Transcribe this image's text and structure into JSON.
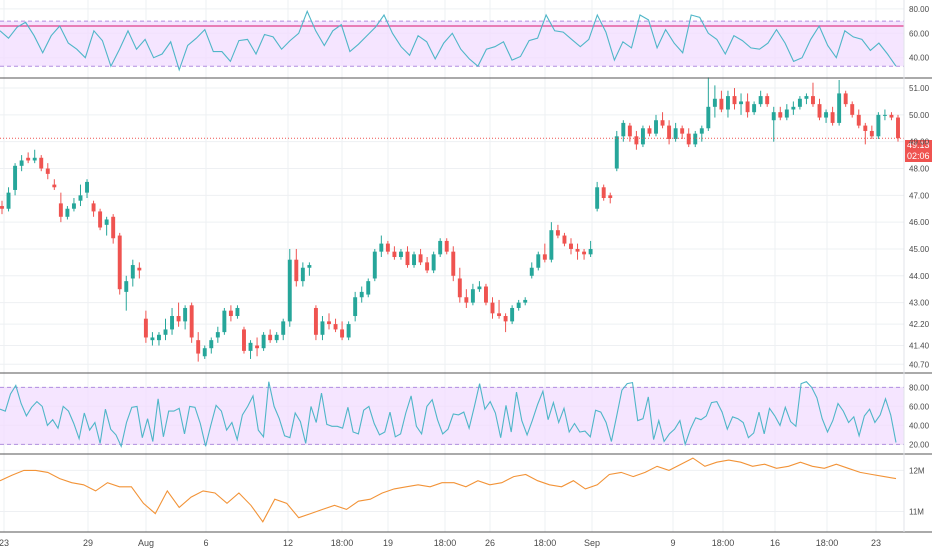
{
  "colors": {
    "up": "#26a69a",
    "down": "#ef5350",
    "rsi_line": "#4fb6c8",
    "band_fill": "#f1dcff",
    "band_border": "#b18ee0",
    "volume_line": "#f29337",
    "separator": "#555555",
    "grid": "#eef0f3",
    "price_line": "#ef5350"
  },
  "price_badge": {
    "price": "49.13",
    "countdown": "02:06"
  },
  "x_axis_labels": [
    "23",
    "29",
    "Aug",
    "6",
    "12",
    "18:00",
    "19",
    "18:00",
    "26",
    "18:00",
    "Sep",
    "9",
    "18:00",
    "16",
    "18:00",
    "23"
  ],
  "chart_data": [
    {
      "type": "line",
      "name": "top-oscillator",
      "y_tick_labels": [
        "80.00",
        "60.00",
        "40.00"
      ],
      "ylim": [
        25,
        84
      ],
      "band": [
        33,
        70
      ],
      "overbought_line": 66,
      "series": [
        {
          "values": [
            62,
            56,
            65,
            69,
            58,
            44,
            58,
            66,
            52,
            47,
            40,
            62,
            54,
            33,
            47,
            62,
            47,
            55,
            40,
            43,
            53,
            30,
            50,
            56,
            63,
            45,
            45,
            37,
            54,
            55,
            43,
            59,
            57,
            47,
            54,
            60,
            78,
            62,
            50,
            62,
            67,
            45,
            51,
            58,
            65,
            75,
            60,
            49,
            42,
            58,
            53,
            39,
            52,
            60,
            47,
            39,
            33,
            47,
            49,
            53,
            38,
            41,
            54,
            56,
            75,
            62,
            61,
            55,
            49,
            55,
            75,
            61,
            38,
            53,
            48,
            75,
            71,
            48,
            63,
            52,
            44,
            75,
            73,
            60,
            55,
            43,
            58,
            54,
            48,
            47,
            52,
            63,
            52,
            37,
            40,
            55,
            66,
            50,
            40,
            62,
            57,
            55,
            46,
            52,
            43,
            33
          ]
        }
      ]
    },
    {
      "type": "candlestick",
      "name": "price",
      "y_tick_labels": [
        "51.00",
        "50.00",
        "49.00",
        "48.00",
        "47.00",
        "46.00",
        "45.00",
        "44.00",
        "43.00",
        "42.20",
        "41.40",
        "40.70"
      ],
      "ylim": [
        40.45,
        51.3
      ],
      "last_price": 49.13,
      "candles": [
        [
          46.6,
          46.8,
          46.3,
          46.5
        ],
        [
          46.5,
          47.3,
          46.4,
          47.1
        ],
        [
          47.2,
          48.2,
          47.0,
          48.1
        ],
        [
          48.1,
          48.5,
          47.9,
          48.3
        ],
        [
          48.4,
          48.6,
          48.2,
          48.3
        ],
        [
          48.3,
          48.7,
          48.2,
          48.4
        ],
        [
          48.4,
          48.5,
          47.9,
          48.0
        ],
        [
          48.0,
          48.2,
          47.6,
          47.8
        ],
        [
          47.4,
          47.6,
          47.2,
          47.3
        ],
        [
          46.7,
          47.1,
          46.0,
          46.2
        ],
        [
          46.2,
          46.6,
          46.1,
          46.5
        ],
        [
          46.5,
          46.9,
          46.4,
          46.7
        ],
        [
          46.8,
          47.4,
          46.6,
          47.0
        ],
        [
          47.1,
          47.6,
          46.9,
          47.5
        ],
        [
          46.7,
          46.8,
          46.2,
          46.4
        ],
        [
          46.4,
          46.5,
          45.7,
          45.8
        ],
        [
          45.9,
          46.2,
          45.5,
          46.1
        ],
        [
          46.2,
          46.3,
          45.2,
          45.4
        ],
        [
          45.5,
          45.6,
          43.3,
          43.5
        ],
        [
          43.4,
          44.0,
          42.7,
          43.8
        ],
        [
          43.9,
          44.6,
          43.6,
          44.4
        ],
        [
          44.3,
          44.5,
          43.9,
          44.2
        ],
        [
          42.4,
          42.7,
          41.5,
          41.7
        ],
        [
          41.6,
          41.9,
          41.4,
          41.7
        ],
        [
          41.6,
          41.9,
          41.4,
          41.8
        ],
        [
          41.8,
          42.4,
          41.6,
          42.0
        ],
        [
          42.0,
          42.8,
          41.8,
          42.5
        ],
        [
          42.5,
          43.0,
          42.1,
          42.3
        ],
        [
          42.3,
          42.9,
          42.0,
          42.8
        ],
        [
          42.9,
          43.0,
          41.5,
          41.7
        ],
        [
          41.6,
          41.9,
          40.8,
          41.1
        ],
        [
          41.0,
          41.4,
          40.9,
          41.3
        ],
        [
          41.3,
          41.7,
          41.1,
          41.6
        ],
        [
          41.7,
          42.1,
          41.5,
          41.9
        ],
        [
          41.9,
          42.8,
          41.8,
          42.7
        ],
        [
          42.7,
          42.9,
          42.3,
          42.5
        ],
        [
          42.5,
          42.9,
          42.4,
          42.8
        ],
        [
          42.0,
          42.1,
          41.1,
          41.2
        ],
        [
          41.2,
          41.6,
          40.9,
          41.5
        ],
        [
          41.4,
          41.7,
          41.0,
          41.3
        ],
        [
          41.3,
          41.9,
          41.2,
          41.8
        ],
        [
          41.8,
          42.0,
          41.5,
          41.6
        ],
        [
          41.6,
          41.9,
          41.5,
          41.8
        ],
        [
          41.8,
          42.4,
          41.6,
          42.3
        ],
        [
          42.3,
          45.0,
          42.1,
          44.6
        ],
        [
          44.6,
          45.0,
          43.6,
          43.8
        ],
        [
          43.8,
          44.5,
          43.6,
          44.3
        ],
        [
          44.3,
          44.5,
          44.0,
          44.4
        ],
        [
          42.8,
          42.9,
          41.6,
          41.8
        ],
        [
          41.8,
          42.5,
          41.6,
          42.3
        ],
        [
          42.3,
          42.6,
          42.0,
          42.2
        ],
        [
          42.2,
          42.4,
          41.9,
          42.0
        ],
        [
          42.0,
          42.3,
          41.6,
          41.7
        ],
        [
          41.7,
          42.3,
          41.6,
          42.2
        ],
        [
          42.5,
          43.4,
          42.3,
          43.2
        ],
        [
          43.2,
          43.6,
          43.0,
          43.4
        ],
        [
          43.3,
          43.9,
          43.2,
          43.8
        ],
        [
          43.9,
          45.0,
          43.8,
          44.9
        ],
        [
          44.9,
          45.5,
          44.7,
          45.2
        ],
        [
          45.2,
          45.3,
          44.8,
          44.9
        ],
        [
          44.9,
          45.1,
          44.6,
          44.7
        ],
        [
          44.7,
          45.0,
          44.6,
          44.9
        ],
        [
          44.9,
          45.1,
          44.3,
          44.4
        ],
        [
          44.4,
          44.9,
          44.3,
          44.8
        ],
        [
          44.8,
          45.0,
          44.4,
          44.5
        ],
        [
          44.5,
          44.7,
          44.1,
          44.2
        ],
        [
          44.2,
          44.9,
          44.1,
          44.8
        ],
        [
          44.8,
          45.4,
          44.7,
          45.3
        ],
        [
          45.3,
          45.4,
          44.8,
          44.9
        ],
        [
          44.9,
          45.1,
          43.8,
          44.0
        ],
        [
          43.9,
          44.3,
          43.0,
          43.2
        ],
        [
          43.2,
          43.5,
          42.8,
          43.0
        ],
        [
          43.0,
          43.7,
          42.9,
          43.5
        ],
        [
          43.5,
          43.8,
          43.4,
          43.6
        ],
        [
          43.6,
          43.7,
          42.9,
          43.0
        ],
        [
          43.0,
          43.2,
          42.4,
          42.6
        ],
        [
          42.6,
          43.1,
          42.4,
          42.5
        ],
        [
          42.5,
          42.6,
          41.9,
          42.3
        ],
        [
          42.3,
          42.9,
          42.2,
          42.8
        ],
        [
          42.8,
          43.1,
          42.7,
          43.0
        ],
        [
          43.0,
          43.2,
          42.9,
          43.1
        ],
        [
          44.0,
          44.5,
          43.9,
          44.3
        ],
        [
          44.3,
          44.9,
          44.2,
          44.8
        ],
        [
          44.8,
          45.2,
          44.5,
          44.6
        ],
        [
          44.6,
          46.0,
          44.5,
          45.7
        ],
        [
          45.7,
          45.9,
          45.4,
          45.5
        ],
        [
          45.5,
          45.6,
          45.1,
          45.2
        ],
        [
          45.2,
          45.4,
          44.8,
          45.0
        ],
        [
          45.0,
          45.2,
          44.6,
          44.9
        ],
        [
          44.9,
          45.0,
          44.6,
          44.8
        ],
        [
          44.8,
          45.3,
          44.7,
          45.0
        ],
        [
          46.5,
          47.5,
          46.4,
          47.3
        ],
        [
          47.3,
          47.4,
          46.8,
          46.9
        ],
        [
          47.0,
          47.1,
          46.7,
          46.9
        ],
        [
          48.0,
          49.4,
          47.9,
          49.2
        ],
        [
          49.2,
          49.8,
          49.0,
          49.7
        ],
        [
          49.6,
          49.7,
          49.0,
          49.2
        ],
        [
          49.2,
          49.4,
          48.7,
          48.9
        ],
        [
          48.9,
          49.6,
          48.8,
          49.5
        ],
        [
          49.5,
          49.6,
          49.2,
          49.3
        ],
        [
          49.3,
          50.0,
          49.2,
          49.8
        ],
        [
          49.8,
          50.1,
          49.5,
          49.6
        ],
        [
          49.6,
          49.8,
          48.9,
          49.1
        ],
        [
          49.1,
          49.7,
          49.0,
          49.5
        ],
        [
          49.5,
          49.6,
          49.1,
          49.3
        ],
        [
          49.3,
          49.5,
          48.8,
          48.9
        ],
        [
          48.9,
          49.4,
          48.8,
          49.3
        ],
        [
          49.3,
          49.6,
          49.0,
          49.5
        ],
        [
          49.5,
          51.4,
          49.4,
          50.3
        ],
        [
          50.3,
          51.1,
          49.9,
          50.6
        ],
        [
          50.6,
          50.9,
          50.1,
          50.2
        ],
        [
          50.2,
          50.9,
          49.9,
          50.7
        ],
        [
          50.7,
          51.0,
          50.2,
          50.4
        ],
        [
          50.4,
          50.8,
          50.0,
          50.5
        ],
        [
          50.5,
          50.8,
          49.9,
          50.1
        ],
        [
          50.1,
          50.5,
          50.0,
          50.4
        ],
        [
          50.4,
          50.9,
          50.3,
          50.7
        ],
        [
          50.7,
          50.8,
          50.3,
          50.4
        ],
        [
          49.8,
          50.3,
          49.0,
          50.1
        ],
        [
          50.1,
          50.3,
          49.8,
          49.9
        ],
        [
          49.9,
          50.4,
          49.8,
          50.2
        ],
        [
          50.2,
          50.5,
          50.0,
          50.3
        ],
        [
          50.3,
          50.7,
          50.2,
          50.6
        ],
        [
          50.6,
          50.8,
          50.4,
          50.7
        ],
        [
          50.7,
          51.2,
          50.3,
          50.4
        ],
        [
          50.4,
          50.6,
          49.8,
          49.9
        ],
        [
          49.9,
          50.2,
          49.7,
          50.1
        ],
        [
          50.1,
          50.3,
          49.6,
          49.7
        ],
        [
          49.7,
          51.3,
          49.6,
          50.8
        ],
        [
          50.8,
          50.9,
          50.3,
          50.4
        ],
        [
          50.4,
          50.5,
          49.9,
          50.0
        ],
        [
          50.0,
          50.2,
          49.5,
          49.6
        ],
        [
          49.6,
          49.7,
          48.9,
          49.4
        ],
        [
          49.4,
          49.6,
          49.1,
          49.2
        ],
        [
          49.2,
          50.1,
          49.1,
          50.0
        ],
        [
          50.0,
          50.2,
          49.8,
          50.0
        ],
        [
          50.0,
          50.1,
          49.8,
          49.9
        ],
        [
          49.9,
          50.0,
          49.0,
          49.13
        ]
      ]
    },
    {
      "type": "line",
      "name": "rsi",
      "y_tick_labels": [
        "80.00",
        "60.00",
        "40.00",
        "20.00"
      ],
      "ylim": [
        12,
        93
      ],
      "band": [
        20,
        80
      ],
      "series": [
        {
          "values": [
            57,
            55,
            73,
            82,
            63,
            50,
            59,
            65,
            60,
            40,
            46,
            37,
            60,
            55,
            42,
            26,
            53,
            35,
            43,
            21,
            57,
            36,
            30,
            18,
            43,
            59,
            60,
            27,
            47,
            23,
            68,
            28,
            55,
            55,
            58,
            31,
            60,
            59,
            42,
            18,
            40,
            61,
            55,
            35,
            43,
            25,
            51,
            60,
            71,
            35,
            28,
            86,
            60,
            47,
            29,
            27,
            53,
            44,
            21,
            60,
            43,
            74,
            41,
            39,
            39,
            37,
            59,
            33,
            31,
            56,
            60,
            42,
            30,
            33,
            54,
            28,
            31,
            53,
            71,
            39,
            31,
            60,
            67,
            46,
            31,
            36,
            52,
            51,
            54,
            37,
            60,
            84,
            57,
            65,
            53,
            27,
            61,
            33,
            75,
            45,
            30,
            45,
            62,
            76,
            46,
            64,
            43,
            58,
            33,
            42,
            33,
            34,
            28,
            56,
            54,
            43,
            23,
            50,
            77,
            84,
            85,
            45,
            47,
            70,
            25,
            45,
            23,
            31,
            36,
            45,
            20,
            36,
            48,
            46,
            50,
            64,
            65,
            54,
            36,
            49,
            47,
            43,
            27,
            32,
            54,
            31,
            58,
            50,
            40,
            59,
            44,
            39,
            84,
            86,
            80,
            69,
            47,
            33,
            45,
            63,
            55,
            43,
            49,
            29,
            50,
            57,
            43,
            51,
            68,
            51,
            22
          ]
        }
      ]
    },
    {
      "type": "line",
      "name": "volume",
      "y_tick_labels": [
        "12M",
        "11M"
      ],
      "ylim": [
        10.55,
        12.35
      ],
      "series": [
        {
          "values": [
            11.75,
            11.88,
            12.0,
            12.0,
            11.95,
            11.8,
            11.7,
            11.65,
            11.5,
            11.7,
            11.6,
            11.6,
            11.2,
            10.95,
            11.5,
            11.1,
            11.35,
            11.5,
            11.45,
            11.2,
            11.45,
            11.15,
            10.75,
            11.3,
            11.2,
            10.85,
            10.95,
            11.05,
            11.15,
            11.05,
            11.25,
            11.3,
            11.45,
            11.55,
            11.6,
            11.65,
            11.6,
            11.7,
            11.7,
            11.6,
            11.75,
            11.65,
            11.7,
            11.85,
            11.9,
            11.75,
            11.65,
            11.6,
            11.75,
            11.55,
            11.65,
            11.9,
            11.95,
            11.85,
            11.95,
            12.1,
            12.0,
            12.15,
            12.3,
            12.1,
            12.2,
            12.25,
            12.2,
            12.1,
            12.15,
            12.05,
            12.1,
            12.2,
            12.1,
            12.05,
            12.15,
            12.05,
            11.95,
            11.9,
            11.85,
            11.8
          ]
        }
      ]
    }
  ]
}
